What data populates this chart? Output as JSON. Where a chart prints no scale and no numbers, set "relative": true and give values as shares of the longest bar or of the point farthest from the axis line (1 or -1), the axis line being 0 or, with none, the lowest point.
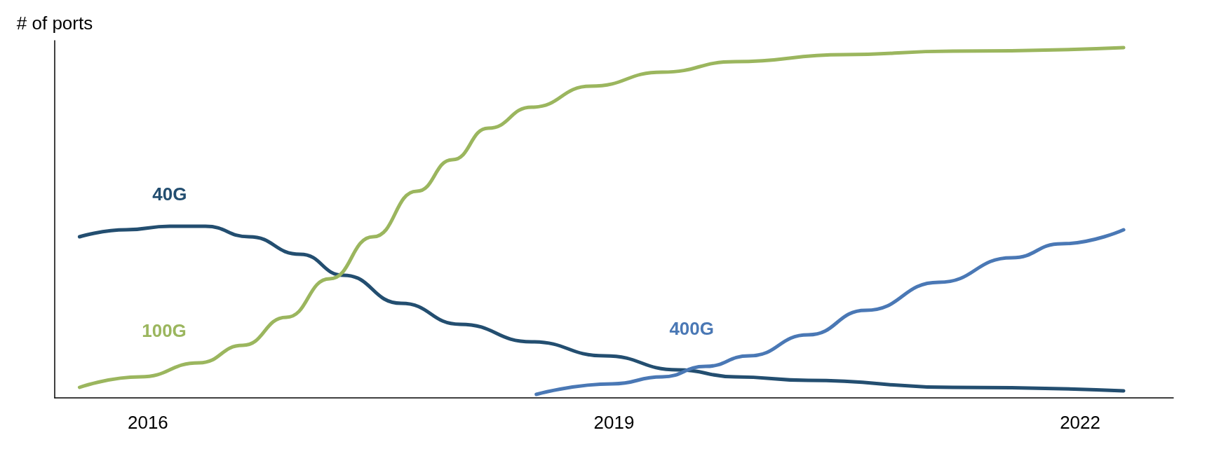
{
  "chart_data": {
    "type": "line",
    "relative": true,
    "ylabel": "# of ports",
    "xlim": [
      2015.4,
      2022.6
    ],
    "xticks": [
      2016,
      2019,
      2022
    ],
    "grid": false,
    "legend": false,
    "marker": "none",
    "line_style": "solid",
    "series": [
      {
        "name": "40G",
        "color": "#234e70",
        "x": [
          2015.56,
          2015.86,
          2016.14,
          2016.37,
          2016.65,
          2016.98,
          2017.26,
          2017.63,
          2018.01,
          2018.47,
          2018.94,
          2019.41,
          2019.78,
          2020.25,
          2021.18,
          2022.28
        ],
        "values": [
          0.46,
          0.48,
          0.49,
          0.49,
          0.46,
          0.41,
          0.35,
          0.27,
          0.21,
          0.16,
          0.12,
          0.08,
          0.06,
          0.05,
          0.03,
          0.02
        ]
      },
      {
        "name": "100G",
        "color": "#9bb65e",
        "x": [
          2015.56,
          2015.95,
          2016.33,
          2016.61,
          2016.89,
          2017.17,
          2017.45,
          2017.73,
          2017.96,
          2018.19,
          2018.47,
          2018.85,
          2019.31,
          2019.78,
          2020.48,
          2021.18,
          2022.28
        ],
        "values": [
          0.03,
          0.06,
          0.1,
          0.15,
          0.23,
          0.34,
          0.46,
          0.59,
          0.68,
          0.77,
          0.83,
          0.89,
          0.93,
          0.96,
          0.98,
          0.99,
          1.0
        ]
      },
      {
        "name": "400G",
        "color": "#4a78b5",
        "x": [
          2018.5,
          2018.99,
          2019.31,
          2019.59,
          2019.87,
          2020.25,
          2020.62,
          2021.09,
          2021.56,
          2021.88,
          2022.28
        ],
        "values": [
          0.01,
          0.04,
          0.06,
          0.09,
          0.12,
          0.18,
          0.25,
          0.33,
          0.4,
          0.44,
          0.48
        ]
      }
    ]
  }
}
